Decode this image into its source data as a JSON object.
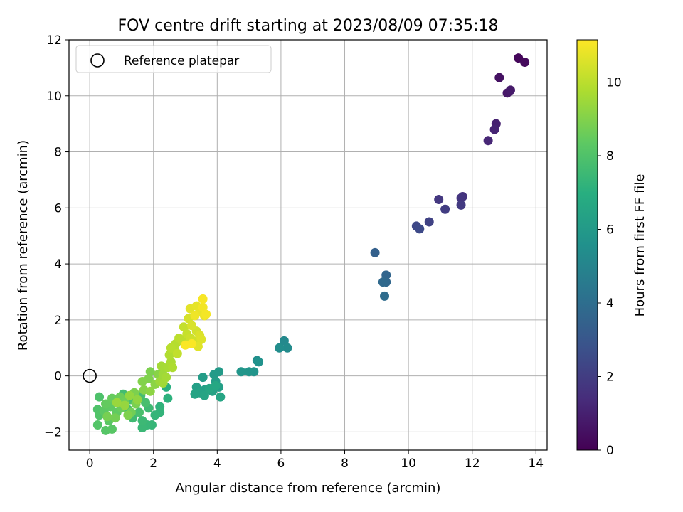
{
  "chart_data": {
    "type": "scatter",
    "title": "FOV centre drift starting at 2023/08/09 07:35:18",
    "xlabel": "Angular distance from reference (arcmin)",
    "ylabel": "Rotation from reference (arcmin)",
    "xlim": [
      -0.65,
      14.35
    ],
    "ylim": [
      -2.65,
      12.0
    ],
    "xticks": [
      0,
      2,
      4,
      6,
      8,
      10,
      12,
      14
    ],
    "yticks": [
      -2,
      0,
      2,
      4,
      6,
      8,
      10,
      12
    ],
    "grid": true,
    "legend": {
      "placement": "top-left",
      "entries": [
        "Reference platepar"
      ]
    },
    "reference_point": {
      "name": "Reference platepar",
      "x": 0,
      "y": 0
    },
    "colorbar": {
      "label": "Hours from first FF file",
      "colormap": "viridis",
      "range": [
        0,
        11.15
      ],
      "ticks": [
        0,
        2,
        4,
        6,
        8,
        10
      ]
    },
    "series": [
      {
        "points": [
          {
            "x": 13.45,
            "y": 11.35,
            "t": 0.2
          },
          {
            "x": 13.65,
            "y": 11.2,
            "t": 0.3
          },
          {
            "x": 12.85,
            "y": 10.65,
            "t": 0.5
          },
          {
            "x": 13.1,
            "y": 10.1,
            "t": 0.7
          },
          {
            "x": 13.2,
            "y": 10.2,
            "t": 0.8
          },
          {
            "x": 12.75,
            "y": 9.0,
            "t": 1.0
          },
          {
            "x": 12.7,
            "y": 8.8,
            "t": 1.1
          },
          {
            "x": 12.5,
            "y": 8.4,
            "t": 1.2
          },
          {
            "x": 11.7,
            "y": 6.4,
            "t": 1.6
          },
          {
            "x": 11.65,
            "y": 6.35,
            "t": 1.7
          },
          {
            "x": 11.65,
            "y": 6.1,
            "t": 1.9
          },
          {
            "x": 10.95,
            "y": 6.3,
            "t": 1.8
          },
          {
            "x": 11.15,
            "y": 5.95,
            "t": 2.0
          },
          {
            "x": 10.65,
            "y": 5.5,
            "t": 2.2
          },
          {
            "x": 10.25,
            "y": 5.35,
            "t": 2.4
          },
          {
            "x": 10.35,
            "y": 5.25,
            "t": 2.5
          },
          {
            "x": 8.95,
            "y": 4.4,
            "t": 3.4
          },
          {
            "x": 9.3,
            "y": 3.6,
            "t": 3.6
          },
          {
            "x": 9.3,
            "y": 3.35,
            "t": 3.7
          },
          {
            "x": 9.2,
            "y": 3.35,
            "t": 3.8
          },
          {
            "x": 9.25,
            "y": 2.85,
            "t": 3.9
          },
          {
            "x": 6.1,
            "y": 1.25,
            "t": 5.2
          },
          {
            "x": 6.2,
            "y": 1.0,
            "t": 5.3
          },
          {
            "x": 5.95,
            "y": 1.0,
            "t": 5.4
          },
          {
            "x": 5.25,
            "y": 0.55,
            "t": 5.5
          },
          {
            "x": 5.3,
            "y": 0.5,
            "t": 5.6
          },
          {
            "x": 5.15,
            "y": 0.15,
            "t": 5.7
          },
          {
            "x": 5.0,
            "y": 0.15,
            "t": 5.75
          },
          {
            "x": 4.75,
            "y": 0.15,
            "t": 5.8
          },
          {
            "x": 4.05,
            "y": 0.15,
            "t": 6.0
          },
          {
            "x": 3.9,
            "y": 0.05,
            "t": 6.05
          },
          {
            "x": 3.55,
            "y": -0.05,
            "t": 6.1
          },
          {
            "x": 3.95,
            "y": -0.2,
            "t": 6.15
          },
          {
            "x": 4.05,
            "y": -0.4,
            "t": 6.2
          },
          {
            "x": 3.35,
            "y": -0.4,
            "t": 6.25
          },
          {
            "x": 3.6,
            "y": -0.5,
            "t": 6.3
          },
          {
            "x": 3.85,
            "y": -0.55,
            "t": 6.35
          },
          {
            "x": 3.45,
            "y": -0.6,
            "t": 6.4
          },
          {
            "x": 3.3,
            "y": -0.65,
            "t": 6.45
          },
          {
            "x": 3.6,
            "y": -0.7,
            "t": 6.5
          },
          {
            "x": 4.1,
            "y": -0.75,
            "t": 6.55
          },
          {
            "x": 3.75,
            "y": -0.45,
            "t": 6.6
          },
          {
            "x": 3.95,
            "y": -0.35,
            "t": 6.65
          },
          {
            "x": 2.4,
            "y": -0.4,
            "t": 7.0
          },
          {
            "x": 2.45,
            "y": -0.8,
            "t": 7.1
          },
          {
            "x": 2.2,
            "y": -1.1,
            "t": 7.2
          },
          {
            "x": 2.2,
            "y": -1.3,
            "t": 7.25
          },
          {
            "x": 2.05,
            "y": -1.4,
            "t": 7.3
          },
          {
            "x": 1.95,
            "y": -1.75,
            "t": 7.35
          },
          {
            "x": 1.8,
            "y": -1.75,
            "t": 7.4
          },
          {
            "x": 1.65,
            "y": -1.85,
            "t": 7.45
          },
          {
            "x": 1.65,
            "y": -1.6,
            "t": 7.5
          },
          {
            "x": 1.85,
            "y": -1.15,
            "t": 7.55
          },
          {
            "x": 1.35,
            "y": -1.5,
            "t": 7.6
          },
          {
            "x": 1.2,
            "y": -1.2,
            "t": 7.65
          },
          {
            "x": 1.05,
            "y": -0.65,
            "t": 7.7
          },
          {
            "x": 1.6,
            "y": -0.7,
            "t": 7.75
          },
          {
            "x": 1.75,
            "y": -0.95,
            "t": 7.8
          },
          {
            "x": 1.55,
            "y": -1.3,
            "t": 7.85
          },
          {
            "x": 1.25,
            "y": -0.85,
            "t": 7.9
          },
          {
            "x": 0.3,
            "y": -0.75,
            "t": 7.95
          },
          {
            "x": 0.25,
            "y": -1.2,
            "t": 8.0
          },
          {
            "x": 0.3,
            "y": -1.4,
            "t": 8.05
          },
          {
            "x": 0.25,
            "y": -1.75,
            "t": 8.1
          },
          {
            "x": 0.5,
            "y": -1.95,
            "t": 8.15
          },
          {
            "x": 0.7,
            "y": -1.9,
            "t": 8.2
          },
          {
            "x": 0.6,
            "y": -1.6,
            "t": 8.25
          },
          {
            "x": 0.45,
            "y": -1.25,
            "t": 8.3
          },
          {
            "x": 0.65,
            "y": -1.1,
            "t": 8.35
          },
          {
            "x": 0.85,
            "y": -1.3,
            "t": 8.4
          },
          {
            "x": 0.5,
            "y": -1.0,
            "t": 8.45
          },
          {
            "x": 0.7,
            "y": -0.8,
            "t": 8.5
          },
          {
            "x": 1.0,
            "y": -1.15,
            "t": 8.55
          },
          {
            "x": 0.95,
            "y": -0.75,
            "t": 8.6
          },
          {
            "x": 1.1,
            "y": -0.95,
            "t": 8.65
          },
          {
            "x": 1.3,
            "y": -1.3,
            "t": 8.7
          },
          {
            "x": 0.8,
            "y": -1.5,
            "t": 8.75
          },
          {
            "x": 0.55,
            "y": -1.45,
            "t": 8.8
          },
          {
            "x": 1.45,
            "y": -1.0,
            "t": 8.85
          },
          {
            "x": 1.4,
            "y": -0.6,
            "t": 8.9
          },
          {
            "x": 1.2,
            "y": -1.4,
            "t": 8.95
          },
          {
            "x": 1.9,
            "y": 0.15,
            "t": 8.9
          },
          {
            "x": 1.85,
            "y": -0.1,
            "t": 8.95
          },
          {
            "x": 1.65,
            "y": -0.2,
            "t": 9.0
          },
          {
            "x": 1.7,
            "y": -0.5,
            "t": 9.05
          },
          {
            "x": 2.15,
            "y": 0.05,
            "t": 9.1
          },
          {
            "x": 2.05,
            "y": -0.3,
            "t": 9.15
          },
          {
            "x": 1.9,
            "y": -0.55,
            "t": 9.2
          },
          {
            "x": 1.5,
            "y": -0.85,
            "t": 9.25
          },
          {
            "x": 1.25,
            "y": -0.7,
            "t": 9.3
          },
          {
            "x": 1.1,
            "y": -1.05,
            "t": 9.35
          },
          {
            "x": 0.85,
            "y": -0.95,
            "t": 9.4
          },
          {
            "x": 2.2,
            "y": -0.2,
            "t": 9.45
          },
          {
            "x": 2.3,
            "y": 0.05,
            "t": 9.5
          },
          {
            "x": 2.3,
            "y": -0.25,
            "t": 9.55
          },
          {
            "x": 2.4,
            "y": -0.05,
            "t": 9.6
          },
          {
            "x": 2.25,
            "y": 0.35,
            "t": 9.6
          },
          {
            "x": 2.45,
            "y": 0.3,
            "t": 9.65
          },
          {
            "x": 2.55,
            "y": 0.5,
            "t": 9.7
          },
          {
            "x": 2.6,
            "y": 0.3,
            "t": 9.75
          },
          {
            "x": 2.5,
            "y": 0.75,
            "t": 9.8
          },
          {
            "x": 2.65,
            "y": 0.95,
            "t": 9.85
          },
          {
            "x": 2.7,
            "y": 1.15,
            "t": 9.9
          },
          {
            "x": 2.55,
            "y": 1.0,
            "t": 9.95
          },
          {
            "x": 2.8,
            "y": 1.35,
            "t": 10.0
          },
          {
            "x": 2.9,
            "y": 1.25,
            "t": 10.05
          },
          {
            "x": 2.75,
            "y": 0.8,
            "t": 10.1
          },
          {
            "x": 2.95,
            "y": 1.75,
            "t": 10.15
          },
          {
            "x": 3.05,
            "y": 1.5,
            "t": 10.2
          },
          {
            "x": 3.15,
            "y": 1.35,
            "t": 10.3
          },
          {
            "x": 3.25,
            "y": 1.25,
            "t": 10.35
          },
          {
            "x": 3.35,
            "y": 1.6,
            "t": 10.4
          },
          {
            "x": 3.1,
            "y": 2.05,
            "t": 10.45
          },
          {
            "x": 3.2,
            "y": 1.8,
            "t": 10.5
          },
          {
            "x": 3.45,
            "y": 1.45,
            "t": 10.55
          },
          {
            "x": 3.5,
            "y": 1.3,
            "t": 10.6
          },
          {
            "x": 3.4,
            "y": 1.05,
            "t": 10.65
          },
          {
            "x": 3.15,
            "y": 2.4,
            "t": 10.7
          },
          {
            "x": 3.35,
            "y": 2.5,
            "t": 10.75
          },
          {
            "x": 3.45,
            "y": 2.3,
            "t": 10.8
          },
          {
            "x": 3.6,
            "y": 2.15,
            "t": 10.85
          },
          {
            "x": 3.3,
            "y": 2.15,
            "t": 10.9
          },
          {
            "x": 3.55,
            "y": 2.45,
            "t": 10.95
          },
          {
            "x": 3.65,
            "y": 2.2,
            "t": 11.0
          },
          {
            "x": 3.55,
            "y": 2.75,
            "t": 11.05
          },
          {
            "x": 3.0,
            "y": 1.1,
            "t": 11.1
          },
          {
            "x": 3.2,
            "y": 1.15,
            "t": 11.1
          }
        ]
      }
    ]
  }
}
